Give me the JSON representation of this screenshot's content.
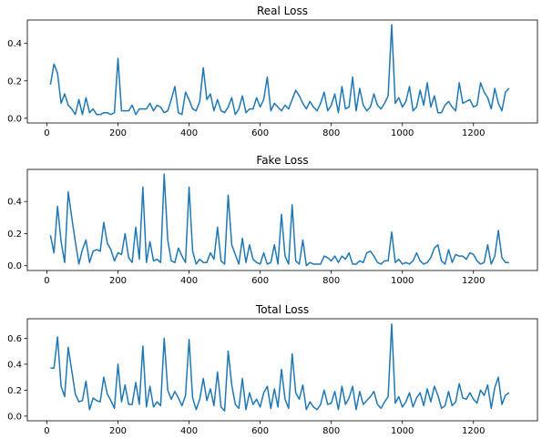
{
  "chart_data": [
    {
      "type": "line",
      "title": "Real Loss",
      "color": "#1f77b4",
      "x": [
        10,
        20,
        30,
        40,
        50,
        60,
        70,
        80,
        90,
        100,
        110,
        120,
        130,
        140,
        150,
        160,
        170,
        180,
        190,
        200,
        210,
        220,
        230,
        240,
        250,
        260,
        270,
        280,
        290,
        300,
        310,
        320,
        330,
        340,
        350,
        360,
        370,
        380,
        390,
        400,
        410,
        420,
        430,
        440,
        450,
        460,
        470,
        480,
        490,
        500,
        510,
        520,
        530,
        540,
        550,
        560,
        570,
        580,
        590,
        600,
        610,
        620,
        630,
        640,
        650,
        660,
        670,
        680,
        690,
        700,
        710,
        720,
        730,
        740,
        750,
        760,
        770,
        780,
        790,
        800,
        810,
        820,
        830,
        840,
        850,
        860,
        870,
        880,
        890,
        900,
        910,
        920,
        930,
        940,
        950,
        960,
        970,
        980,
        990,
        1000,
        1010,
        1020,
        1030,
        1040,
        1050,
        1060,
        1070,
        1080,
        1090,
        1100,
        1110,
        1120,
        1130,
        1140,
        1150,
        1160,
        1170,
        1180,
        1190,
        1200,
        1210,
        1220,
        1230,
        1240,
        1250,
        1260,
        1270,
        1280,
        1290,
        1300
      ],
      "values": [
        0.18,
        0.29,
        0.24,
        0.08,
        0.13,
        0.07,
        0.05,
        0.02,
        0.1,
        0.02,
        0.11,
        0.03,
        0.05,
        0.02,
        0.02,
        0.03,
        0.03,
        0.02,
        0.03,
        0.32,
        0.04,
        0.04,
        0.04,
        0.07,
        0.02,
        0.05,
        0.05,
        0.05,
        0.08,
        0.04,
        0.07,
        0.06,
        0.03,
        0.04,
        0.1,
        0.17,
        0.03,
        0.02,
        0.14,
        0.1,
        0.05,
        0.04,
        0.09,
        0.27,
        0.1,
        0.13,
        0.04,
        0.1,
        0.04,
        0.03,
        0.06,
        0.11,
        0.02,
        0.05,
        0.12,
        0.03,
        0.05,
        0.05,
        0.11,
        0.06,
        0.1,
        0.22,
        0.04,
        0.08,
        0.06,
        0.04,
        0.07,
        0.05,
        0.1,
        0.15,
        0.12,
        0.08,
        0.05,
        0.09,
        0.06,
        0.04,
        0.08,
        0.14,
        0.04,
        0.07,
        0.13,
        0.03,
        0.17,
        0.05,
        0.06,
        0.22,
        0.04,
        0.16,
        0.07,
        0.04,
        0.06,
        0.13,
        0.07,
        0.05,
        0.08,
        0.12,
        0.5,
        0.08,
        0.11,
        0.06,
        0.09,
        0.17,
        0.04,
        0.06,
        0.15,
        0.07,
        0.19,
        0.06,
        0.12,
        0.03,
        0.03,
        0.07,
        0.09,
        0.06,
        0.04,
        0.19,
        0.08,
        0.09,
        0.1,
        0.06,
        0.07,
        0.19,
        0.14,
        0.11,
        0.05,
        0.16,
        0.08,
        0.04,
        0.14,
        0.16
      ],
      "xlim": [
        -55,
        1380
      ],
      "xticks": [
        0,
        200,
        400,
        600,
        800,
        1000,
        1200
      ],
      "ylim": [
        -0.025,
        0.525
      ],
      "yticks": [
        {
          "value": 0,
          "label": "0.0"
        },
        {
          "value": 0.2,
          "label": "0.2"
        },
        {
          "value": 0.4,
          "label": "0.4"
        }
      ]
    },
    {
      "type": "line",
      "title": "Fake Loss",
      "color": "#1f77b4",
      "x": [
        10,
        20,
        30,
        40,
        50,
        60,
        70,
        80,
        90,
        100,
        110,
        120,
        130,
        140,
        150,
        160,
        170,
        180,
        190,
        200,
        210,
        220,
        230,
        240,
        250,
        260,
        270,
        280,
        290,
        300,
        310,
        320,
        330,
        340,
        350,
        360,
        370,
        380,
        390,
        400,
        410,
        420,
        430,
        440,
        450,
        460,
        470,
        480,
        490,
        500,
        510,
        520,
        530,
        540,
        550,
        560,
        570,
        580,
        590,
        600,
        610,
        620,
        630,
        640,
        650,
        660,
        670,
        680,
        690,
        700,
        710,
        720,
        730,
        740,
        750,
        760,
        770,
        780,
        790,
        800,
        810,
        820,
        830,
        840,
        850,
        860,
        870,
        880,
        890,
        900,
        910,
        920,
        930,
        940,
        950,
        960,
        970,
        980,
        990,
        1000,
        1010,
        1020,
        1030,
        1040,
        1050,
        1060,
        1070,
        1080,
        1090,
        1100,
        1110,
        1120,
        1130,
        1140,
        1150,
        1160,
        1170,
        1180,
        1190,
        1200,
        1210,
        1220,
        1230,
        1240,
        1250,
        1260,
        1270,
        1280,
        1290,
        1300
      ],
      "values": [
        0.19,
        0.08,
        0.37,
        0.15,
        0.02,
        0.46,
        0.3,
        0.15,
        0.01,
        0.1,
        0.16,
        0.02,
        0.09,
        0.1,
        0.09,
        0.27,
        0.14,
        0.1,
        0.03,
        0.08,
        0.07,
        0.2,
        0.05,
        0.02,
        0.24,
        0.04,
        0.49,
        0.02,
        0.15,
        0.03,
        0.04,
        0.02,
        0.57,
        0.16,
        0.03,
        0.02,
        0.11,
        0.06,
        0.02,
        0.49,
        0.09,
        0.01,
        0.04,
        0.02,
        0.02,
        0.08,
        0.04,
        0.24,
        0.03,
        0.01,
        0.44,
        0.13,
        0.07,
        0.01,
        0.17,
        0.02,
        0.13,
        0.04,
        0.02,
        0.01,
        0.08,
        0.01,
        0.02,
        0.13,
        0.01,
        0.32,
        0.06,
        0.01,
        0.38,
        0.03,
        0.01,
        0.16,
        0.0,
        0.02,
        0.01,
        0.01,
        0.01,
        0.06,
        0.05,
        0.03,
        0.06,
        0.02,
        0.06,
        0.04,
        0.08,
        0.01,
        0.01,
        0.03,
        0.02,
        0.08,
        0.09,
        0.06,
        0.02,
        0.01,
        0.03,
        0.03,
        0.21,
        0.02,
        0.04,
        0.01,
        0.02,
        0.01,
        0.03,
        0.08,
        0.03,
        0.01,
        0.02,
        0.05,
        0.11,
        0.13,
        0.03,
        0.01,
        0.1,
        0.02,
        0.07,
        0.06,
        0.06,
        0.04,
        0.08,
        0.07,
        0.03,
        0.01,
        0.02,
        0.13,
        0.01,
        0.06,
        0.22,
        0.05,
        0.02,
        0.02
      ],
      "xlim": [
        -55,
        1380
      ],
      "xticks": [
        0,
        200,
        400,
        600,
        800,
        1000,
        1200
      ],
      "ylim": [
        -0.03,
        0.6
      ],
      "yticks": [
        {
          "value": 0,
          "label": "0.0"
        },
        {
          "value": 0.2,
          "label": "0.2"
        },
        {
          "value": 0.4,
          "label": "0.4"
        }
      ]
    },
    {
      "type": "line",
      "title": "Total Loss",
      "color": "#1f77b4",
      "x": [
        10,
        20,
        30,
        40,
        50,
        60,
        70,
        80,
        90,
        100,
        110,
        120,
        130,
        140,
        150,
        160,
        170,
        180,
        190,
        200,
        210,
        220,
        230,
        240,
        250,
        260,
        270,
        280,
        290,
        300,
        310,
        320,
        330,
        340,
        350,
        360,
        370,
        380,
        390,
        400,
        410,
        420,
        430,
        440,
        450,
        460,
        470,
        480,
        490,
        500,
        510,
        520,
        530,
        540,
        550,
        560,
        570,
        580,
        590,
        600,
        610,
        620,
        630,
        640,
        650,
        660,
        670,
        680,
        690,
        700,
        710,
        720,
        730,
        740,
        750,
        760,
        770,
        780,
        790,
        800,
        810,
        820,
        830,
        840,
        850,
        860,
        870,
        880,
        890,
        900,
        910,
        920,
        930,
        940,
        950,
        960,
        970,
        980,
        990,
        1000,
        1010,
        1020,
        1030,
        1040,
        1050,
        1060,
        1070,
        1080,
        1090,
        1100,
        1110,
        1120,
        1130,
        1140,
        1150,
        1160,
        1170,
        1180,
        1190,
        1200,
        1210,
        1220,
        1230,
        1240,
        1250,
        1260,
        1270,
        1280,
        1290,
        1300
      ],
      "values": [
        0.37,
        0.37,
        0.61,
        0.23,
        0.15,
        0.53,
        0.35,
        0.17,
        0.11,
        0.12,
        0.27,
        0.05,
        0.14,
        0.12,
        0.11,
        0.3,
        0.17,
        0.12,
        0.06,
        0.4,
        0.11,
        0.24,
        0.09,
        0.09,
        0.26,
        0.09,
        0.54,
        0.07,
        0.23,
        0.07,
        0.11,
        0.08,
        0.6,
        0.2,
        0.13,
        0.19,
        0.14,
        0.08,
        0.16,
        0.59,
        0.14,
        0.05,
        0.13,
        0.29,
        0.12,
        0.21,
        0.08,
        0.34,
        0.07,
        0.04,
        0.5,
        0.24,
        0.09,
        0.06,
        0.29,
        0.05,
        0.18,
        0.09,
        0.13,
        0.07,
        0.18,
        0.23,
        0.06,
        0.21,
        0.07,
        0.36,
        0.13,
        0.06,
        0.48,
        0.18,
        0.13,
        0.24,
        0.05,
        0.11,
        0.07,
        0.05,
        0.09,
        0.2,
        0.09,
        0.1,
        0.19,
        0.05,
        0.23,
        0.09,
        0.14,
        0.23,
        0.05,
        0.19,
        0.09,
        0.12,
        0.15,
        0.19,
        0.09,
        0.06,
        0.11,
        0.15,
        0.71,
        0.1,
        0.15,
        0.07,
        0.11,
        0.18,
        0.07,
        0.14,
        0.18,
        0.08,
        0.21,
        0.11,
        0.23,
        0.16,
        0.06,
        0.08,
        0.19,
        0.08,
        0.11,
        0.25,
        0.14,
        0.13,
        0.18,
        0.13,
        0.1,
        0.2,
        0.16,
        0.24,
        0.06,
        0.22,
        0.3,
        0.09,
        0.16,
        0.18
      ],
      "xlim": [
        -55,
        1380
      ],
      "xticks": [
        0,
        200,
        400,
        600,
        800,
        1000,
        1200
      ],
      "ylim": [
        -0.036,
        0.75
      ],
      "yticks": [
        {
          "value": 0,
          "label": "0.0"
        },
        {
          "value": 0.2,
          "label": "0.2"
        },
        {
          "value": 0.4,
          "label": "0.4"
        },
        {
          "value": 0.6,
          "label": "0.6"
        }
      ]
    }
  ]
}
